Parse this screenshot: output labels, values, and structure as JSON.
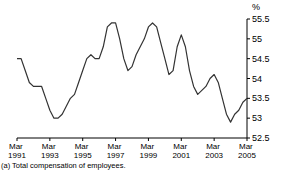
{
  "chart_data": {
    "type": "line",
    "y_label": "%",
    "footnote": "(a) Total compensation of employees.",
    "categories": [
      "Mar 1991",
      null,
      null,
      null,
      null,
      null,
      null,
      null,
      "Mar 1993",
      null,
      null,
      null,
      null,
      null,
      null,
      null,
      "Mar 1995",
      null,
      null,
      null,
      null,
      null,
      null,
      null,
      "Mar 1997",
      null,
      null,
      null,
      null,
      null,
      null,
      null,
      "Mar 1999",
      null,
      null,
      null,
      null,
      null,
      null,
      null,
      "Mar 2001",
      null,
      null,
      null,
      null,
      null,
      null,
      null,
      "Mar 2003",
      null,
      null,
      null,
      null,
      null,
      null,
      null,
      "Mar 2005"
    ],
    "series": [
      {
        "name": "Compensation of employees",
        "color": "#333333",
        "values": [
          54.5,
          54.5,
          54.2,
          53.9,
          53.8,
          53.8,
          53.8,
          53.5,
          53.2,
          53.0,
          53.0,
          53.1,
          53.3,
          53.5,
          53.6,
          53.9,
          54.2,
          54.5,
          54.6,
          54.5,
          54.5,
          54.8,
          55.3,
          55.4,
          55.4,
          55.0,
          54.5,
          54.2,
          54.3,
          54.6,
          54.8,
          55.0,
          55.3,
          55.4,
          55.3,
          54.9,
          54.5,
          54.1,
          54.2,
          54.8,
          55.1,
          54.8,
          54.2,
          53.8,
          53.6,
          53.7,
          53.8,
          54.0,
          54.1,
          53.9,
          53.5,
          53.1,
          52.9,
          53.1,
          53.2,
          53.4,
          53.5
        ]
      }
    ],
    "ylim": [
      52.5,
      55.5
    ],
    "yticks": [
      {
        "value": 52.5,
        "label": "52.5"
      },
      53,
      {
        "value": 53.5,
        "label": "53.5"
      },
      54,
      {
        "value": 54.5,
        "label": "54.5"
      },
      55,
      {
        "value": 55.5,
        "label": "55.5"
      }
    ],
    "grid": false
  }
}
